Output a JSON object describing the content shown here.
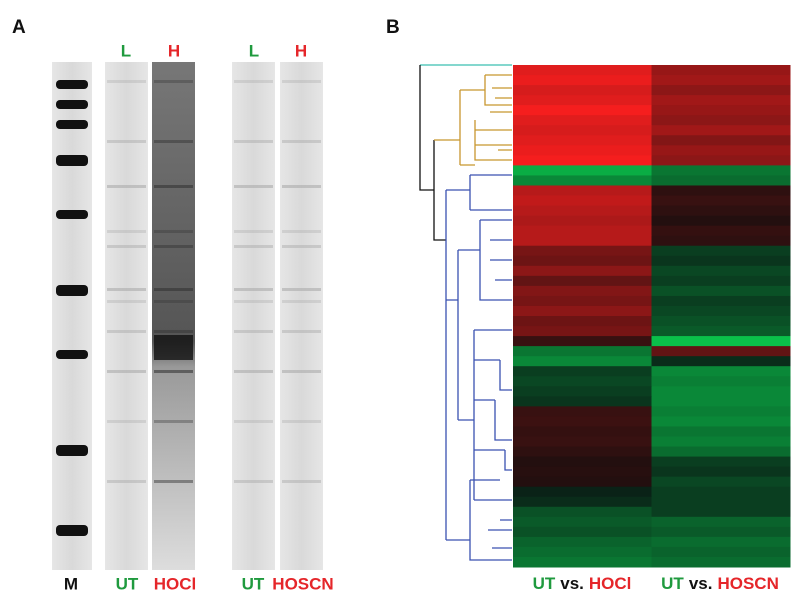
{
  "panels": {
    "a": {
      "label": "A",
      "lane_top": [
        "L",
        "H",
        "L",
        "H"
      ],
      "lane_bottom": [
        "M",
        "UT",
        "HOCl",
        "UT",
        "HOSCN"
      ]
    },
    "b": {
      "label": "B",
      "heatmap": {
        "rows": [
          [
            0.9,
            0.55
          ],
          [
            0.95,
            0.6
          ],
          [
            0.85,
            0.5
          ],
          [
            0.9,
            0.6
          ],
          [
            1.0,
            0.55
          ],
          [
            0.9,
            0.5
          ],
          [
            0.85,
            0.6
          ],
          [
            0.9,
            0.45
          ],
          [
            0.95,
            0.55
          ],
          [
            1.0,
            0.5
          ],
          [
            -0.8,
            -0.5
          ],
          [
            -0.6,
            -0.45
          ],
          [
            0.7,
            0.05
          ],
          [
            0.75,
            0.1
          ],
          [
            0.7,
            0.05
          ],
          [
            0.65,
            0.0
          ],
          [
            0.7,
            0.08
          ],
          [
            0.7,
            0.05
          ],
          [
            0.4,
            -0.2
          ],
          [
            0.35,
            -0.15
          ],
          [
            0.5,
            -0.25
          ],
          [
            0.3,
            -0.2
          ],
          [
            0.45,
            -0.3
          ],
          [
            0.4,
            -0.2
          ],
          [
            0.5,
            -0.25
          ],
          [
            0.35,
            -0.3
          ],
          [
            0.4,
            -0.35
          ],
          [
            0.1,
            -0.9
          ],
          [
            -0.5,
            0.3
          ],
          [
            -0.6,
            -0.1
          ],
          [
            -0.2,
            -0.6
          ],
          [
            -0.25,
            -0.55
          ],
          [
            -0.2,
            -0.6
          ],
          [
            -0.15,
            -0.6
          ],
          [
            0.1,
            -0.55
          ],
          [
            0.12,
            -0.6
          ],
          [
            0.08,
            -0.5
          ],
          [
            0.1,
            -0.55
          ],
          [
            0.05,
            -0.45
          ],
          [
            0.0,
            -0.2
          ],
          [
            0.02,
            -0.15
          ],
          [
            0.0,
            -0.25
          ],
          [
            -0.05,
            -0.2
          ],
          [
            -0.1,
            -0.2
          ],
          [
            -0.3,
            -0.2
          ],
          [
            -0.35,
            -0.4
          ],
          [
            -0.3,
            -0.35
          ],
          [
            -0.4,
            -0.45
          ],
          [
            -0.45,
            -0.4
          ],
          [
            -0.5,
            -0.45
          ]
        ]
      },
      "columns": [
        {
          "parts": [
            "UT",
            "vs.",
            "HOCl"
          ]
        },
        {
          "parts": [
            "UT",
            "vs.",
            "HOSCN"
          ]
        }
      ]
    }
  }
}
